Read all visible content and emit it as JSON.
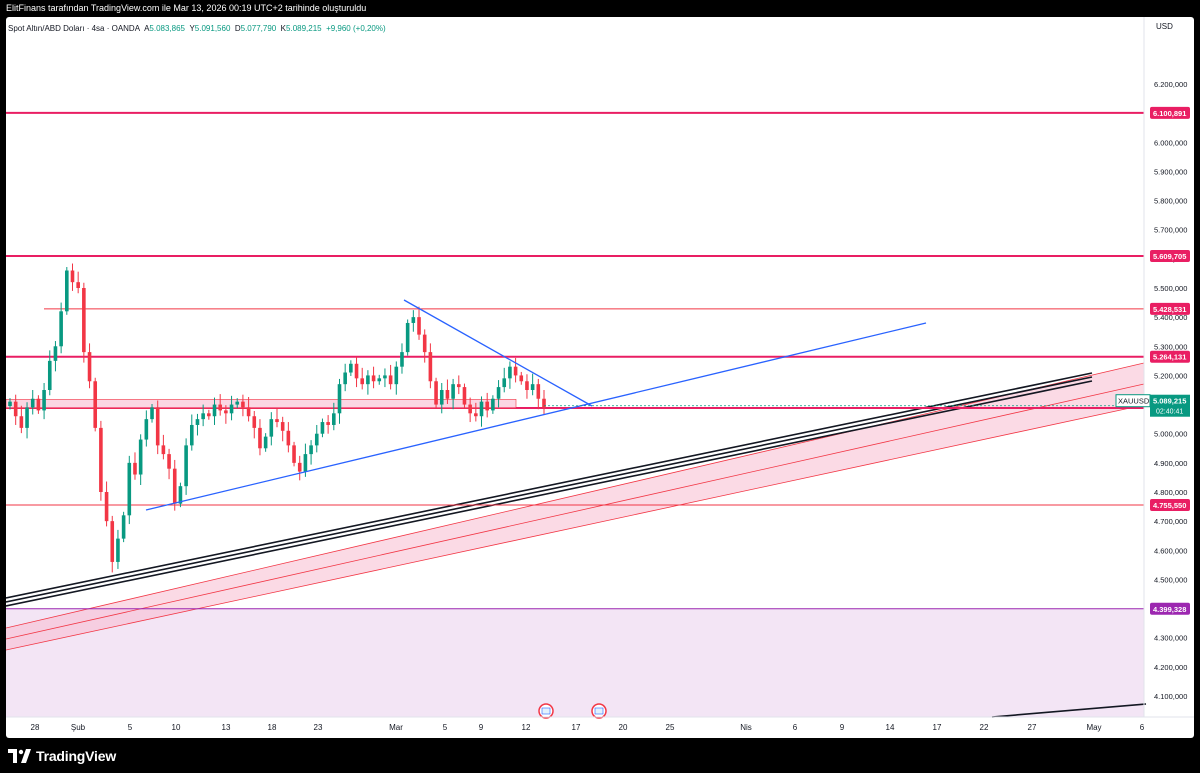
{
  "header": {
    "caption": "ElitFinans tarafından TradingView.com ile Mar 13, 2026 00:19 UTC+2 tarihinde oluşturuldu"
  },
  "legend": {
    "symbol": "Spot Altın/ABD Doları · 4sa · OANDA",
    "open_label": "A",
    "open": "5.083,865",
    "high_label": "Y",
    "high": "5.091,560",
    "low_label": "D",
    "low": "5.077,790",
    "close_label": "K",
    "close": "5.089,215",
    "change": "+9,960 (+0,20%)"
  },
  "footer": {
    "brand": "TradingView"
  },
  "colors": {
    "level_line": "#e91e63",
    "level_line_thin": "#f23645",
    "trend_blue": "#2962ff",
    "bull": "#089981",
    "bear": "#f23645",
    "channel_fill": "#f8bbd0",
    "support_zone": "#f3e5f5",
    "purple": "#9c27b0"
  },
  "chart_data": {
    "type": "candlestick",
    "symbol": "XAUUSD",
    "currency": "USD",
    "ylim": [
      4080000,
      6270000
    ],
    "y_tick_labels": [
      "6.200,000",
      "6.100,000",
      "6.000,000",
      "5.900,000",
      "5.800,000",
      "5.700,000",
      "5.600,000",
      "5.500,000",
      "5.400,000",
      "5.300,000",
      "5.200,000",
      "5.100,000",
      "5.000,000",
      "4.900,000",
      "4.800,000",
      "4.700,000",
      "4.600,000",
      "4.500,000",
      "4.400,000",
      "4.300,000",
      "4.200,000",
      "4.100,000"
    ],
    "y_tick_values": [
      6200000,
      6100000,
      6000000,
      5900000,
      5800000,
      5700000,
      5600000,
      5500000,
      5400000,
      5300000,
      5200000,
      5100000,
      5000000,
      4900000,
      4800000,
      4700000,
      4600000,
      4500000,
      4400000,
      4300000,
      4200000,
      4100000
    ],
    "x_tick_labels": [
      "28",
      "Şub",
      "5",
      "10",
      "13",
      "18",
      "23",
      "Mar",
      "5",
      "9",
      "12",
      "17",
      "20",
      "25",
      "Nis",
      "6",
      "9",
      "14",
      "17",
      "22",
      "27",
      "May",
      "6"
    ],
    "price_levels": [
      {
        "label": "6.100,891",
        "value": 6100891,
        "style": "thick"
      },
      {
        "label": "5.609,705",
        "value": 5609705,
        "style": "thick"
      },
      {
        "label": "5.428,531",
        "value": 5428531,
        "style": "thin"
      },
      {
        "label": "5.264,131",
        "value": 5264131,
        "style": "thick"
      },
      {
        "label": "5.088,184",
        "value": 5088184,
        "style": "thick"
      },
      {
        "label": "4.755,550",
        "value": 4755550,
        "style": "thin"
      },
      {
        "label": "4.399,328",
        "value": 4399328,
        "style": "purple"
      }
    ],
    "current_price": {
      "symbol": "XAUUSD",
      "price": "5.089,215",
      "countdown": "02:40:41",
      "value": 5089215
    },
    "closes": [
      5110000,
      5060000,
      5020000,
      5090000,
      5120000,
      5080000,
      5150000,
      5250000,
      5300000,
      5420000,
      5560000,
      5520000,
      5500000,
      5280000,
      5180000,
      5020000,
      4800000,
      4700000,
      4560000,
      4640000,
      4720000,
      4900000,
      4860000,
      4980000,
      5050000,
      5090000,
      4960000,
      4930000,
      4880000,
      4760000,
      4820000,
      4960000,
      5030000,
      5050000,
      5070000,
      5060000,
      5100000,
      5080000,
      5070000,
      5100000,
      5110000,
      5090000,
      5060000,
      5020000,
      4950000,
      4990000,
      5050000,
      5040000,
      5010000,
      4960000,
      4900000,
      4870000,
      4930000,
      4960000,
      5000000,
      5040000,
      5030000,
      5070000,
      5170000,
      5210000,
      5240000,
      5190000,
      5170000,
      5200000,
      5180000,
      5190000,
      5200000,
      5170000,
      5230000,
      5280000,
      5380000,
      5400000,
      5340000,
      5280000,
      5180000,
      5100000,
      5150000,
      5120000,
      5170000,
      5160000,
      5100000,
      5070000,
      5060000,
      5110000,
      5080000,
      5120000,
      5160000,
      5190000,
      5230000,
      5200000,
      5180000,
      5150000,
      5170000,
      5120000,
      5089215
    ]
  }
}
